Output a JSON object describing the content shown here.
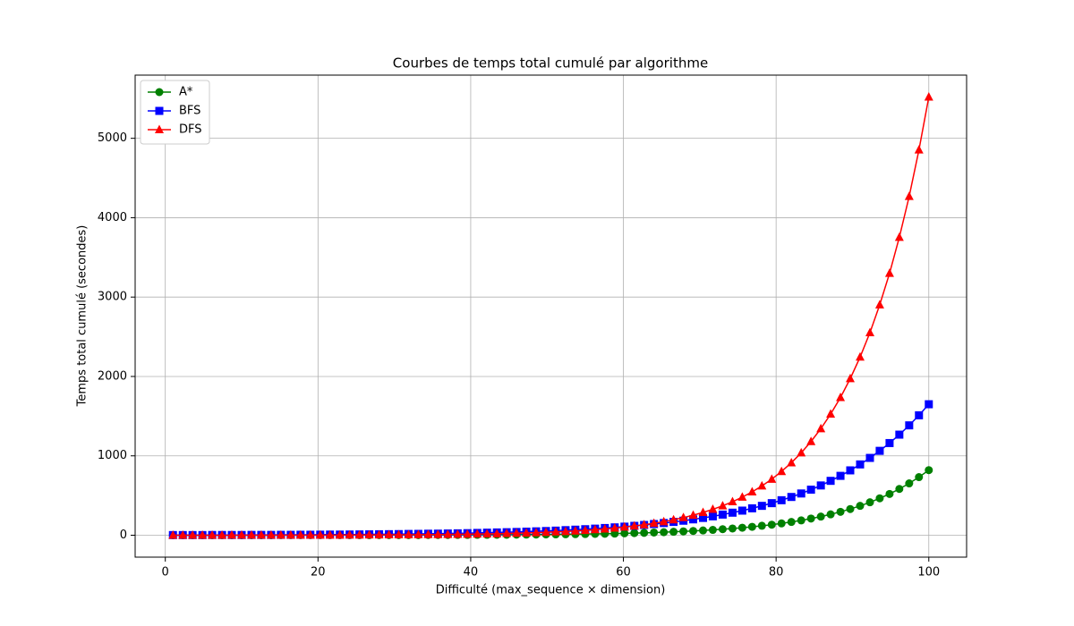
{
  "chart_data": {
    "type": "line",
    "title": "Courbes de temps total cumulé par algorithme",
    "x_label": "Difficulté (max_sequence × dimension)",
    "y_label": "Temps total cumulé (secondes)",
    "x": [
      1,
      2.29,
      3.57,
      4.86,
      6.14,
      7.43,
      8.71,
      10,
      11.29,
      12.57,
      13.86,
      15.14,
      16.43,
      17.71,
      19,
      20.29,
      21.57,
      22.86,
      24.14,
      25.43,
      26.71,
      28,
      29.29,
      30.57,
      31.86,
      33.14,
      34.43,
      35.71,
      37,
      38.29,
      39.57,
      40.86,
      42.14,
      43.43,
      44.71,
      46,
      47.29,
      48.57,
      49.86,
      51.14,
      52.43,
      53.71,
      55,
      56.29,
      57.57,
      58.86,
      60.14,
      61.43,
      62.71,
      64,
      65.29,
      66.57,
      67.86,
      69.14,
      70.43,
      71.71,
      73,
      74.29,
      75.57,
      76.86,
      78.14,
      79.43,
      80.71,
      82,
      83.29,
      84.57,
      85.86,
      87.14,
      88.43,
      89.71,
      91,
      92.29,
      93.57,
      94.86,
      96.14,
      97.43,
      98.71,
      100
    ],
    "series": [
      {
        "name": "A*",
        "color": "#008000",
        "marker": "o",
        "values": [
          0,
          0,
          0,
          0,
          0,
          0,
          0,
          0,
          0,
          0,
          0,
          1,
          1,
          1,
          1,
          1,
          1,
          1,
          1,
          1,
          1,
          2,
          2,
          2,
          2,
          2,
          3,
          3,
          3,
          4,
          4,
          5,
          5,
          6,
          6,
          7,
          8,
          9,
          10,
          11,
          12,
          14,
          15,
          17,
          19,
          21,
          24,
          27,
          30,
          34,
          38,
          43,
          48,
          54,
          60,
          67,
          76,
          85,
          95,
          106,
          119,
          133,
          149,
          167,
          187,
          210,
          235,
          263,
          295,
          330,
          370,
          415,
          465,
          520,
          583,
          653,
          732,
          820
        ]
      },
      {
        "name": "BFS",
        "color": "#0000ff",
        "marker": "s",
        "values": [
          2,
          2,
          2,
          2,
          3,
          3,
          3,
          3,
          4,
          4,
          4,
          5,
          5,
          6,
          6,
          7,
          8,
          8,
          9,
          10,
          11,
          12,
          13,
          14,
          16,
          17,
          19,
          20,
          22,
          24,
          26,
          29,
          32,
          35,
          38,
          41,
          45,
          49,
          53,
          58,
          64,
          70,
          76,
          83,
          91,
          99,
          108,
          118,
          129,
          141,
          154,
          168,
          183,
          200,
          218,
          238,
          260,
          284,
          310,
          339,
          370,
          404,
          441,
          482,
          526,
          574,
          627,
          685,
          748,
          817,
          892,
          974,
          1063,
          1161,
          1267,
          1384,
          1511,
          1650
        ]
      },
      {
        "name": "DFS",
        "color": "#ff0000",
        "marker": "^",
        "values": [
          0,
          0,
          0,
          0,
          0,
          0,
          1,
          1,
          1,
          1,
          1,
          1,
          1,
          1,
          2,
          2,
          2,
          2,
          3,
          3,
          4,
          4,
          5,
          5,
          6,
          7,
          8,
          9,
          10,
          11,
          13,
          15,
          17,
          19,
          22,
          25,
          28,
          32,
          37,
          42,
          47,
          54,
          61,
          70,
          79,
          90,
          103,
          117,
          133,
          151,
          171,
          195,
          222,
          252,
          287,
          326,
          371,
          422,
          480,
          546,
          621,
          706,
          803,
          913,
          1038,
          1180,
          1342,
          1526,
          1735,
          1973,
          2244,
          2552,
          2902,
          3300,
          3753,
          4268,
          4854,
          5520
        ]
      }
    ],
    "xlim": [
      -3.95,
      104.95
    ],
    "xticks": [
      0,
      20,
      40,
      60,
      80,
      100
    ],
    "ylim": [
      -276,
      5796
    ],
    "yticks": [
      0,
      1000,
      2000,
      3000,
      4000,
      5000
    ],
    "grid": true,
    "legend": "upper left"
  }
}
